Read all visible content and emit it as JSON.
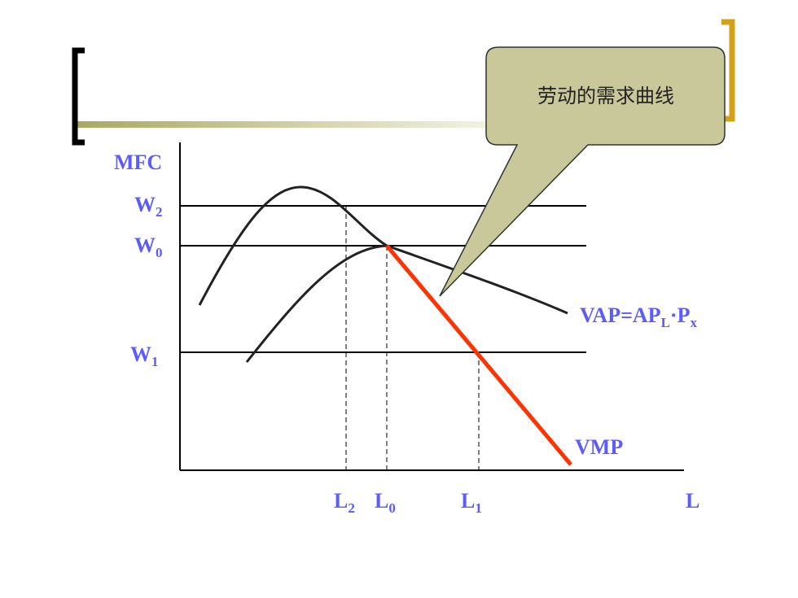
{
  "callout": {
    "text": "劳动的需求曲线"
  },
  "axes": {
    "y_label": "MFC",
    "x_label": "L"
  },
  "y_labels": [
    {
      "main": "W",
      "sub": "2"
    },
    {
      "main": "W",
      "sub": "0"
    },
    {
      "main": "W",
      "sub": "1"
    }
  ],
  "x_labels": [
    {
      "main": "L",
      "sub": "2"
    },
    {
      "main": "L",
      "sub": "0"
    },
    {
      "main": "L",
      "sub": "1"
    }
  ],
  "curve_labels": {
    "vap": [
      {
        "main": "VAP=AP",
        "sub": "L"
      },
      {
        "main": "·P",
        "sub": "x"
      }
    ],
    "vmp": "VMP"
  }
}
